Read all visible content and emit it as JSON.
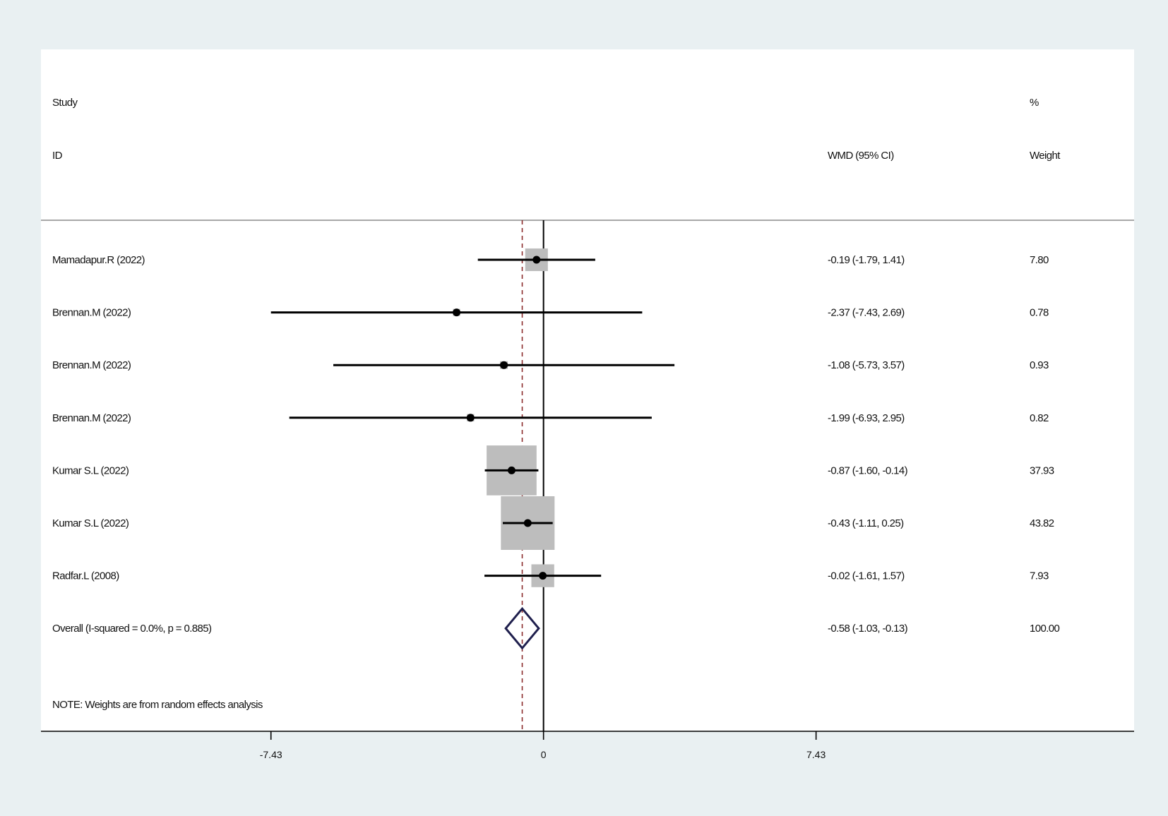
{
  "chart_data": {
    "type": "forest",
    "headers": {
      "study_line1": "Study",
      "study_line2": "ID",
      "effect": "WMD (95% CI)",
      "weight_line1": "%",
      "weight_line2": "Weight"
    },
    "studies": [
      {
        "id": "Mamadapur.R (2022)",
        "estimate": -0.19,
        "ci_low": -1.79,
        "ci_high": 1.41,
        "ci_text": "-0.19 (-1.79, 1.41)",
        "weight": 7.8,
        "weight_text": "7.80"
      },
      {
        "id": "Brennan.M (2022)",
        "estimate": -2.37,
        "ci_low": -7.43,
        "ci_high": 2.69,
        "ci_text": "-2.37 (-7.43, 2.69)",
        "weight": 0.78,
        "weight_text": "0.78"
      },
      {
        "id": "Brennan.M (2022)",
        "estimate": -1.08,
        "ci_low": -5.73,
        "ci_high": 3.57,
        "ci_text": "-1.08 (-5.73, 3.57)",
        "weight": 0.93,
        "weight_text": "0.93"
      },
      {
        "id": "Brennan.M (2022)",
        "estimate": -1.99,
        "ci_low": -6.93,
        "ci_high": 2.95,
        "ci_text": "-1.99 (-6.93, 2.95)",
        "weight": 0.82,
        "weight_text": "0.82"
      },
      {
        "id": "Kumar S.L (2022)",
        "estimate": -0.87,
        "ci_low": -1.6,
        "ci_high": -0.14,
        "ci_text": "-0.87 (-1.60, -0.14)",
        "weight": 37.93,
        "weight_text": "37.93"
      },
      {
        "id": "Kumar S.L (2022)",
        "estimate": -0.43,
        "ci_low": -1.11,
        "ci_high": 0.25,
        "ci_text": "-0.43 (-1.11, 0.25)",
        "weight": 43.82,
        "weight_text": "43.82"
      },
      {
        "id": "Radfar.L (2008)",
        "estimate": -0.02,
        "ci_low": -1.61,
        "ci_high": 1.57,
        "ci_text": "-0.02 (-1.61, 1.57)",
        "weight": 7.93,
        "weight_text": "7.93"
      }
    ],
    "overall": {
      "label": "Overall  (I-squared = 0.0%, p = 0.885)",
      "estimate": -0.58,
      "ci_low": -1.03,
      "ci_high": -0.13,
      "ci_text": "-0.58 (-1.03, -0.13)",
      "weight_text": "100.00"
    },
    "note": "NOTE: Weights are from random effects analysis",
    "x_axis": {
      "ticks": [
        -7.43,
        0,
        7.43
      ],
      "tick_labels": [
        "-7.43",
        "0",
        "7.43"
      ],
      "xlim": [
        -13.7,
        16.1
      ]
    },
    "colors": {
      "box": "#bdbdbd",
      "line": "#000000",
      "overall_diamond": "#1f1f4d",
      "overall_ref_line": "#8b2b2b",
      "panel": "#ffffff",
      "background": "#e9f0f2"
    }
  }
}
